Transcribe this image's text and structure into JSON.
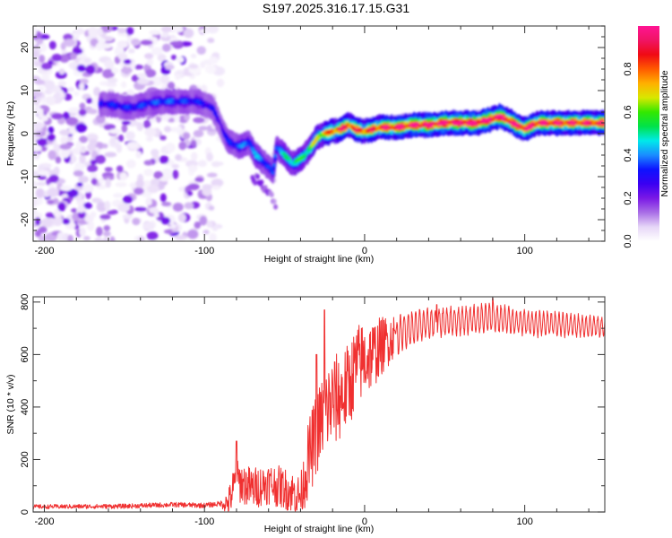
{
  "figure": {
    "title": "S197.2025.316.17.15.G31"
  },
  "chart_data": [
    {
      "type": "heatmap",
      "name": "spectrogram",
      "title": "S197.2025.316.17.15.G31",
      "xlabel": "Height of straight line (km)",
      "ylabel": "Frequency (Hz)",
      "xlim": [
        -207,
        150
      ],
      "ylim": [
        -25,
        25
      ],
      "xticks": [
        -200,
        -100,
        0,
        100
      ],
      "xtick_labels": [
        "-200",
        "-100",
        "0",
        "100"
      ],
      "x_minor_step": 20,
      "yticks": [
        -20,
        -10,
        0,
        10,
        20
      ],
      "ytick_labels": [
        "-20",
        "-10",
        "0",
        "10",
        "20"
      ],
      "y_minor_step": 2.5,
      "colorbar": {
        "label": "Normalized spectral amplitude",
        "range": [
          0,
          1
        ],
        "ticks": [
          0.0,
          0.2,
          0.4,
          0.6,
          0.8
        ],
        "tick_labels": [
          "0.0",
          "0.2",
          "0.4",
          "0.6",
          "0.8"
        ],
        "colormap": [
          "#ffffff",
          "#e6d6f7",
          "#a96ee6",
          "#7a18e6",
          "#3a00f2",
          "#0d13ff",
          "#1a8cff",
          "#00eaea",
          "#00e24a",
          "#33e800",
          "#d8e800",
          "#ffb000",
          "#ff5a00",
          "#f00a14",
          "#f01464",
          "#ff1493"
        ]
      },
      "signal_ridge": {
        "description": "Frequency of the dominant spectral peak vs height",
        "points": [
          [
            -165,
            7
          ],
          [
            -155,
            6.5
          ],
          [
            -145,
            6
          ],
          [
            -135,
            7
          ],
          [
            -125,
            7.5
          ],
          [
            -105,
            7.5
          ],
          [
            -95,
            6
          ],
          [
            -90,
            2
          ],
          [
            -85,
            -2
          ],
          [
            -78,
            -3
          ],
          [
            -72,
            -2
          ],
          [
            -68,
            -5
          ],
          [
            -62,
            -7
          ],
          [
            -57,
            -9
          ],
          [
            -55,
            -3
          ],
          [
            -50,
            -5
          ],
          [
            -45,
            -7
          ],
          [
            -40,
            -6
          ],
          [
            -35,
            -4
          ],
          [
            -30,
            -1
          ],
          [
            -25,
            0
          ],
          [
            -20,
            0.5
          ],
          [
            -15,
            1
          ],
          [
            -10,
            2
          ],
          [
            -5,
            1
          ],
          [
            0,
            0.5
          ],
          [
            5,
            1
          ],
          [
            10,
            1.5
          ],
          [
            20,
            1.5
          ],
          [
            30,
            2
          ],
          [
            40,
            2
          ],
          [
            50,
            2.5
          ],
          [
            60,
            2.5
          ],
          [
            70,
            2.5
          ],
          [
            80,
            3.5
          ],
          [
            85,
            4
          ],
          [
            90,
            3
          ],
          [
            95,
            2
          ],
          [
            100,
            1
          ],
          [
            105,
            2
          ],
          [
            110,
            2.5
          ],
          [
            120,
            2.5
          ],
          [
            130,
            2.5
          ],
          [
            140,
            2.5
          ],
          [
            150,
            2.5
          ]
        ],
        "amplitude": [
          [
            -165,
            0.3
          ],
          [
            -140,
            0.32
          ],
          [
            -125,
            0.35
          ],
          [
            -100,
            0.3
          ],
          [
            -90,
            0.25
          ],
          [
            -80,
            0.35
          ],
          [
            -65,
            0.4
          ],
          [
            -58,
            0.3
          ],
          [
            -55,
            0.4
          ],
          [
            -45,
            0.5
          ],
          [
            -35,
            0.55
          ],
          [
            -25,
            0.7
          ],
          [
            -15,
            0.85
          ],
          [
            0,
            0.8
          ],
          [
            20,
            0.9
          ],
          [
            50,
            0.95
          ],
          [
            80,
            0.95
          ],
          [
            100,
            0.9
          ],
          [
            150,
            0.85
          ]
        ]
      },
      "noise_region": {
        "x_from": -207,
        "x_to": -95,
        "amplitude": 0.1
      },
      "secondary_branch": [
        [
          -70,
          -10
        ],
        [
          -60,
          -13
        ],
        [
          -55,
          -17
        ]
      ]
    },
    {
      "type": "line",
      "name": "snr",
      "xlabel": "Height of straight line (km)",
      "ylabel": "SNR (10 * v/v)",
      "xlim": [
        -207,
        150
      ],
      "ylim": [
        0,
        820
      ],
      "xticks": [
        -200,
        -100,
        0,
        100
      ],
      "xtick_labels": [
        "-200",
        "-100",
        "0",
        "100"
      ],
      "x_minor_step": 20,
      "yticks": [
        0,
        200,
        400,
        600,
        800
      ],
      "ytick_labels": [
        "0",
        "200",
        "400",
        "600",
        "800"
      ],
      "y_minor_step": 100,
      "series": [
        {
          "name": "SNR",
          "color": "#f03030",
          "envelope": [
            [
              -207,
              20
            ],
            [
              -150,
              22
            ],
            [
              -120,
              28
            ],
            [
              -100,
              25
            ],
            [
              -85,
              35
            ],
            [
              -80,
              120
            ],
            [
              -70,
              90
            ],
            [
              -60,
              110
            ],
            [
              -50,
              90
            ],
            [
              -40,
              60
            ],
            [
              -35,
              200
            ],
            [
              -30,
              300
            ],
            [
              -25,
              380
            ],
            [
              -20,
              420
            ],
            [
              -15,
              440
            ],
            [
              -10,
              480
            ],
            [
              -5,
              560
            ],
            [
              0,
              580
            ],
            [
              5,
              600
            ],
            [
              10,
              630
            ],
            [
              20,
              680
            ],
            [
              30,
              700
            ],
            [
              40,
              720
            ],
            [
              60,
              730
            ],
            [
              80,
              740
            ],
            [
              100,
              720
            ],
            [
              120,
              715
            ],
            [
              150,
              705
            ]
          ],
          "oscillation": [
            [
              -207,
              8
            ],
            [
              -90,
              10
            ],
            [
              -82,
              80
            ],
            [
              -40,
              80
            ],
            [
              -35,
              150
            ],
            [
              -20,
              180
            ],
            [
              0,
              150
            ],
            [
              20,
              80
            ],
            [
              40,
              50
            ],
            [
              80,
              50
            ],
            [
              150,
              35
            ]
          ],
          "peaks": [
            {
              "x": -80,
              "y": 270
            },
            {
              "x": -30,
              "y": 600
            },
            {
              "x": -25,
              "y": 770
            },
            {
              "x": 45,
              "y": 790
            },
            {
              "x": 80,
              "y": 815
            }
          ]
        }
      ]
    }
  ]
}
